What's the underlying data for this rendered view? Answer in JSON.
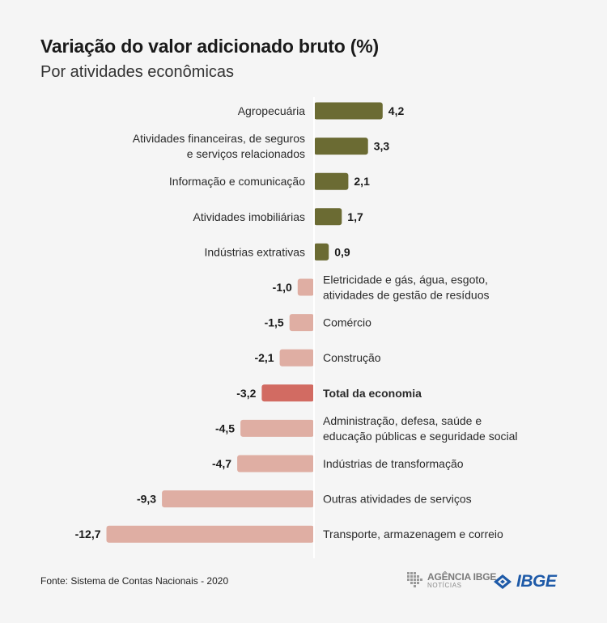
{
  "chart_data": {
    "type": "bar",
    "orientation": "horizontal",
    "title": "Variação do valor adicionado bruto (%)",
    "subtitle": "Por atividades econômicas",
    "categories": [
      [
        "Agropecuária"
      ],
      [
        "Atividades financeiras, de seguros",
        "e serviços relacionados"
      ],
      [
        "Informação e comunicação"
      ],
      [
        "Atividades imobiliárias"
      ],
      [
        "Indústrias extrativas"
      ],
      [
        "Eletricidade e gás, água, esgoto,",
        "atividades de gestão de resíduos"
      ],
      [
        "Comércio"
      ],
      [
        "Construção"
      ],
      [
        "Total da economia"
      ],
      [
        "Administração, defesa, saúde e",
        "educação públicas e seguridade social"
      ],
      [
        "Indústrias de transformação"
      ],
      [
        "Outras atividades de serviços"
      ],
      [
        "Transporte, armazenagem e correio"
      ]
    ],
    "values": [
      4.2,
      3.3,
      2.1,
      1.7,
      0.9,
      -1.0,
      -1.5,
      -2.1,
      -3.2,
      -4.5,
      -4.7,
      -9.3,
      -12.7
    ],
    "value_labels": [
      "4,2",
      "3,3",
      "2,1",
      "1,7",
      "0,9",
      "-1,0",
      "-1,5",
      "-2,1",
      "-3,2",
      "-4,5",
      "-4,7",
      "-9,3",
      "-12,7"
    ],
    "highlight": "Total da economia",
    "colors": {
      "positive": "#6b6b33",
      "negative": "#dfaea3",
      "highlight": "#d26b62",
      "zero_line": "#ffffff"
    }
  },
  "footer": {
    "source": "Fonte: Sistema de Contas Nacionais - 2020",
    "agencia_line1": "AGÊNCIA IBGE",
    "agencia_line2": "NOTÍCIAS",
    "ibge_wordmark": "IBGE"
  }
}
